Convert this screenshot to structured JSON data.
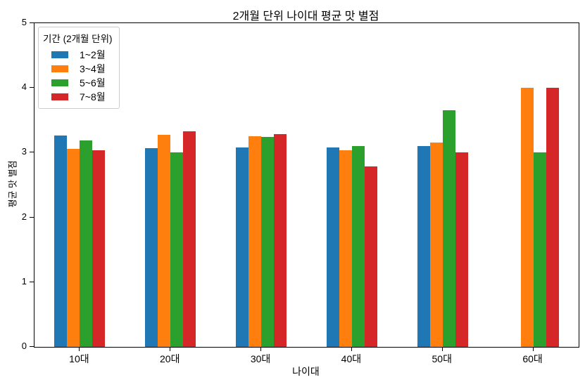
{
  "chart_data": {
    "type": "bar",
    "title": "2개월 단위 나이대 평균 맛 별점",
    "xlabel": "나이대",
    "ylabel": "평균 맛 별점",
    "categories": [
      "10대",
      "20대",
      "30대",
      "40대",
      "50대",
      "60대"
    ],
    "series": [
      {
        "name": "1~2월",
        "color": "#1f77b4",
        "values": [
          3.27,
          3.07,
          3.08,
          3.08,
          3.1,
          0
        ]
      },
      {
        "name": "3~4월",
        "color": "#ff7f0e",
        "values": [
          3.06,
          3.28,
          3.25,
          3.04,
          3.16,
          4.0
        ]
      },
      {
        "name": "5~6월",
        "color": "#2ca02c",
        "values": [
          3.19,
          3.0,
          3.24,
          3.1,
          3.65,
          3.0
        ]
      },
      {
        "name": "7~8월",
        "color": "#d62728",
        "values": [
          3.04,
          3.33,
          3.29,
          2.79,
          3.0,
          4.0
        ]
      }
    ],
    "ylim": [
      0,
      5
    ],
    "yticks": [
      "0",
      "1",
      "2",
      "3",
      "4",
      "5"
    ],
    "grid": false,
    "legend": {
      "title": "기간 (2개월 단위)",
      "position": "upper left"
    }
  },
  "colors": {
    "axis": "#000000",
    "legend_border": "#cccccc",
    "background": "#ffffff"
  }
}
